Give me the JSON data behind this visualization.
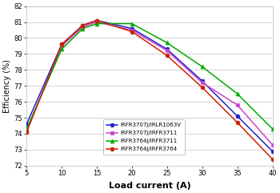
{
  "x": [
    5,
    10,
    13,
    15,
    20,
    25,
    30,
    35,
    40
  ],
  "series": [
    {
      "label": "IRFR3707J/IRLR1063V",
      "color": "#2222cc",
      "marker": "o",
      "markercolor": "#2222cc",
      "y": [
        74.6,
        79.6,
        80.8,
        81.1,
        80.6,
        79.3,
        77.3,
        75.1,
        72.9
      ]
    },
    {
      "label": "IRFR3707J/IRFR3711",
      "color": "#cc44cc",
      "marker": "s",
      "markercolor": "#cc44cc",
      "y": [
        74.2,
        79.5,
        80.7,
        81.0,
        80.5,
        79.2,
        77.2,
        75.8,
        73.3
      ]
    },
    {
      "label": "IRFR3764J/IRFR3711",
      "color": "#00aa00",
      "marker": "^",
      "markercolor": "#00aa00",
      "y": [
        74.3,
        79.3,
        80.6,
        80.9,
        80.9,
        79.7,
        78.2,
        76.5,
        74.3
      ]
    },
    {
      "label": "IRFR3764J/IRFR3764",
      "color": "#cc2200",
      "marker": "o",
      "markercolor": "#cc2200",
      "y": [
        74.1,
        79.6,
        80.8,
        81.1,
        80.4,
        78.9,
        76.9,
        74.7,
        72.4
      ]
    }
  ],
  "xlabel": "Load current (A)",
  "ylabel": "Efficiency (%)",
  "xlim": [
    5,
    40
  ],
  "ylim": [
    72,
    82
  ],
  "xticks": [
    5,
    10,
    15,
    20,
    25,
    30,
    35,
    40
  ],
  "yticks": [
    72,
    73,
    74,
    75,
    76,
    77,
    78,
    79,
    80,
    81,
    82
  ],
  "grid_color": "#cccccc",
  "bg_color": "#ffffff",
  "xlabel_fontsize": 8,
  "ylabel_fontsize": 7,
  "tick_fontsize": 6,
  "legend_fontsize": 5
}
